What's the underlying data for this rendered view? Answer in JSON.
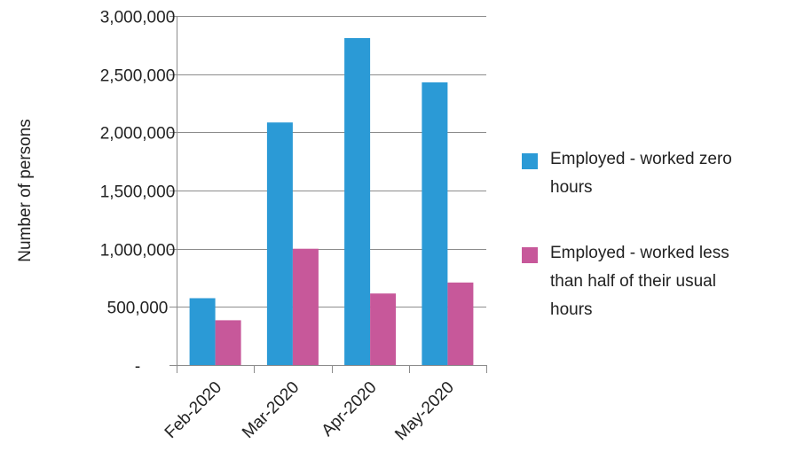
{
  "chart_data": {
    "type": "bar",
    "categories": [
      "Feb-2020",
      "Mar-2020",
      "Apr-2020",
      "May-2020"
    ],
    "series": [
      {
        "name": "Employed - worked zero hours",
        "color": "#2b9ad6",
        "values": [
          575000,
          2085000,
          2810000,
          2430000
        ]
      },
      {
        "name": "Employed - worked less than half of their usual hours",
        "color": "#c7589a",
        "values": [
          385000,
          1000000,
          615000,
          710000
        ]
      }
    ],
    "ylabel": "Number of persons",
    "xlabel": "",
    "ylim": [
      0,
      3000000
    ],
    "yticks": [
      0,
      500000,
      1000000,
      1500000,
      2000000,
      2500000,
      3000000
    ],
    "ytick_labels": [
      "-",
      "500,000",
      "1,000,000",
      "1,500,000",
      "2,000,000",
      "2,500,000",
      "3,000,000"
    ],
    "grid": true,
    "legend_position": "right"
  },
  "legend": {
    "items": [
      {
        "line1": "Employed - worked zero",
        "line2": "hours"
      },
      {
        "line1": "Employed - worked less",
        "line2": "than half of their usual",
        "line3": "hours"
      }
    ]
  }
}
